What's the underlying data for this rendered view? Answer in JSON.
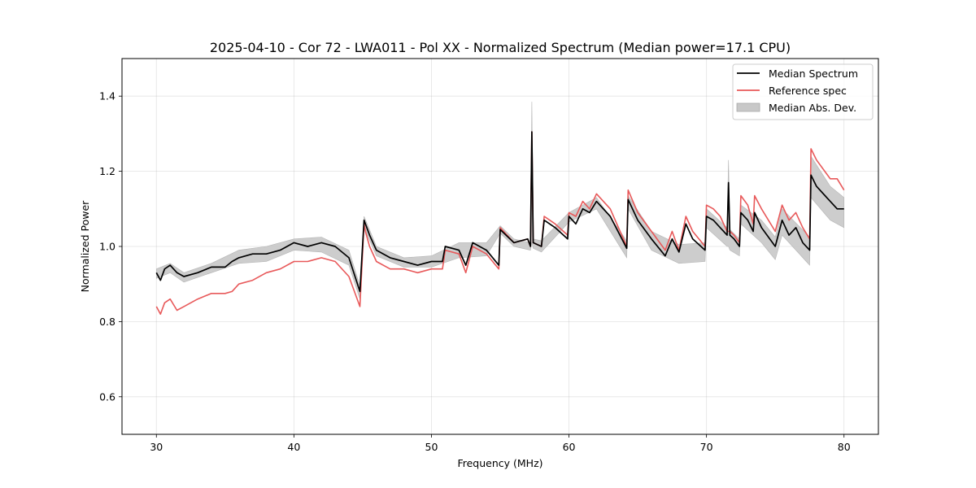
{
  "chart_data": {
    "type": "line",
    "title": "2025-04-10 - Cor 72 - LWA011 - Pol XX - Normalized Spectrum (Median power=17.1 CPU)",
    "xlabel": "Frequency (MHz)",
    "ylabel": "Normalized Power",
    "xlim": [
      27.5,
      82.5
    ],
    "ylim": [
      0.5,
      1.5
    ],
    "xticks": [
      30,
      40,
      50,
      60,
      70,
      80
    ],
    "yticks": [
      0.6,
      0.8,
      1.0,
      1.2,
      1.4
    ],
    "xtick_labels": [
      "30",
      "40",
      "50",
      "60",
      "70",
      "80"
    ],
    "ytick_labels": [
      "0.6",
      "0.8",
      "1.0",
      "1.2",
      "1.4"
    ],
    "grid": true,
    "legend_position": "top-right",
    "legend": [
      {
        "label": "Median Spectrum",
        "kind": "line",
        "color": "#000000"
      },
      {
        "label": "Reference spec",
        "kind": "line",
        "color": "#e8595a"
      },
      {
        "label": "Median Abs. Dev.",
        "kind": "band",
        "color": "#c8c8c8"
      }
    ],
    "series": [
      {
        "name": "Median Spectrum",
        "color": "#000000",
        "x": [
          30.0,
          30.3,
          30.6,
          31.0,
          31.5,
          32.0,
          33.0,
          34.0,
          35.0,
          35.5,
          36.0,
          37.0,
          38.0,
          39.0,
          40.0,
          41.0,
          42.0,
          43.0,
          44.0,
          44.8,
          45.1,
          45.2,
          45.5,
          46.0,
          47.0,
          48.0,
          49.0,
          50.0,
          50.8,
          51.0,
          52.0,
          52.5,
          53.0,
          54.0,
          54.9,
          55.0,
          56.0,
          57.0,
          57.2,
          57.3,
          57.4,
          58.0,
          58.2,
          59.0,
          59.9,
          60.0,
          60.5,
          61.0,
          61.5,
          62.0,
          63.0,
          64.2,
          64.3,
          65.0,
          66.0,
          67.0,
          67.5,
          68.0,
          68.5,
          69.0,
          69.9,
          70.0,
          70.5,
          71.0,
          71.5,
          71.6,
          71.7,
          72.0,
          72.4,
          72.5,
          73.0,
          73.4,
          73.5,
          74.0,
          75.0,
          75.5,
          76.0,
          76.5,
          77.0,
          77.5,
          77.6,
          78.0,
          79.0,
          79.5,
          80.0
        ],
        "y": [
          0.93,
          0.91,
          0.94,
          0.95,
          0.93,
          0.92,
          0.93,
          0.945,
          0.945,
          0.96,
          0.97,
          0.98,
          0.98,
          0.99,
          1.01,
          1.0,
          1.01,
          1.0,
          0.97,
          0.88,
          1.07,
          1.06,
          1.03,
          0.99,
          0.97,
          0.96,
          0.95,
          0.96,
          0.96,
          1.0,
          0.99,
          0.95,
          1.01,
          0.99,
          0.95,
          1.045,
          1.01,
          1.02,
          1.0,
          1.305,
          1.01,
          1.0,
          1.07,
          1.05,
          1.02,
          1.08,
          1.06,
          1.1,
          1.09,
          1.12,
          1.08,
          0.995,
          1.125,
          1.07,
          1.02,
          0.975,
          1.02,
          0.985,
          1.06,
          1.02,
          0.99,
          1.08,
          1.07,
          1.05,
          1.03,
          1.17,
          1.03,
          1.02,
          1.0,
          1.09,
          1.07,
          1.04,
          1.09,
          1.05,
          1.0,
          1.07,
          1.03,
          1.05,
          1.01,
          0.99,
          1.19,
          1.16,
          1.12,
          1.1,
          1.1
        ]
      },
      {
        "name": "Reference spec",
        "color": "#e8595a",
        "x": [
          30.0,
          30.3,
          30.6,
          31.0,
          31.5,
          32.0,
          33.0,
          34.0,
          35.0,
          35.5,
          36.0,
          37.0,
          38.0,
          39.0,
          40.0,
          41.0,
          42.0,
          43.0,
          44.0,
          44.8,
          45.1,
          45.2,
          45.5,
          46.0,
          47.0,
          48.0,
          49.0,
          50.0,
          50.8,
          51.0,
          52.0,
          52.5,
          53.0,
          54.0,
          54.9,
          55.0,
          56.0,
          57.0,
          57.2,
          57.3,
          57.4,
          58.0,
          58.2,
          59.0,
          59.9,
          60.0,
          60.5,
          61.0,
          61.5,
          62.0,
          63.0,
          64.2,
          64.3,
          65.0,
          66.0,
          67.0,
          67.5,
          68.0,
          68.5,
          69.0,
          69.9,
          70.0,
          70.5,
          71.0,
          71.5,
          71.6,
          71.7,
          72.0,
          72.4,
          72.5,
          73.0,
          73.4,
          73.5,
          74.0,
          75.0,
          75.5,
          76.0,
          76.5,
          77.0,
          77.5,
          77.6,
          78.0,
          79.0,
          79.5,
          80.0
        ],
        "y": [
          0.84,
          0.82,
          0.85,
          0.86,
          0.83,
          0.84,
          0.86,
          0.875,
          0.875,
          0.88,
          0.9,
          0.91,
          0.93,
          0.94,
          0.96,
          0.96,
          0.97,
          0.96,
          0.92,
          0.84,
          1.06,
          1.04,
          1.0,
          0.96,
          0.94,
          0.94,
          0.93,
          0.94,
          0.94,
          0.99,
          0.98,
          0.93,
          1.0,
          0.98,
          0.94,
          1.05,
          1.01,
          1.02,
          1.0,
          1.305,
          1.01,
          1.0,
          1.08,
          1.06,
          1.03,
          1.09,
          1.08,
          1.12,
          1.1,
          1.14,
          1.1,
          1.0,
          1.15,
          1.09,
          1.04,
          0.99,
          1.04,
          0.99,
          1.08,
          1.04,
          1.0,
          1.11,
          1.1,
          1.08,
          1.04,
          1.04,
          1.04,
          1.03,
          1.01,
          1.135,
          1.11,
          1.06,
          1.135,
          1.1,
          1.04,
          1.11,
          1.07,
          1.09,
          1.05,
          1.02,
          1.26,
          1.23,
          1.18,
          1.18,
          1.15
        ]
      }
    ],
    "band": {
      "name": "Median Abs. Dev.",
      "color": "#c8c8c8",
      "x": [
        30.0,
        31.0,
        32.0,
        34.0,
        36.0,
        38.0,
        40.0,
        42.0,
        44.0,
        44.8,
        45.1,
        46.0,
        48.0,
        50.0,
        52.0,
        54.0,
        55.0,
        56.0,
        57.2,
        57.3,
        57.4,
        58.0,
        60.0,
        62.0,
        64.2,
        64.3,
        66.0,
        68.0,
        69.9,
        70.0,
        71.5,
        71.6,
        71.7,
        72.4,
        72.5,
        74.0,
        75.0,
        75.5,
        77.5,
        77.6,
        79.0,
        80.0
      ],
      "upper": [
        0.94,
        0.955,
        0.93,
        0.955,
        0.99,
        1.0,
        1.02,
        1.025,
        0.99,
        0.895,
        1.08,
        1.0,
        0.97,
        0.975,
        1.01,
        1.01,
        1.055,
        1.02,
        1.01,
        1.385,
        1.02,
        1.015,
        1.09,
        1.13,
        1.015,
        1.135,
        1.04,
        1.005,
        1.01,
        1.1,
        1.05,
        1.23,
        1.045,
        1.02,
        1.11,
        1.07,
        1.025,
        1.1,
        1.025,
        1.24,
        1.16,
        1.13
      ],
      "lower": [
        0.915,
        0.93,
        0.905,
        0.93,
        0.955,
        0.96,
        0.99,
        0.985,
        0.95,
        0.86,
        1.05,
        0.975,
        0.945,
        0.945,
        0.97,
        0.975,
        1.035,
        1.0,
        0.99,
        1.01,
        0.995,
        0.985,
        1.065,
        1.1,
        0.97,
        1.1,
        0.99,
        0.955,
        0.96,
        1.05,
        1.0,
        1.0,
        0.99,
        0.975,
        1.06,
        1.01,
        0.965,
        1.03,
        0.95,
        1.13,
        1.07,
        1.05
      ]
    }
  }
}
